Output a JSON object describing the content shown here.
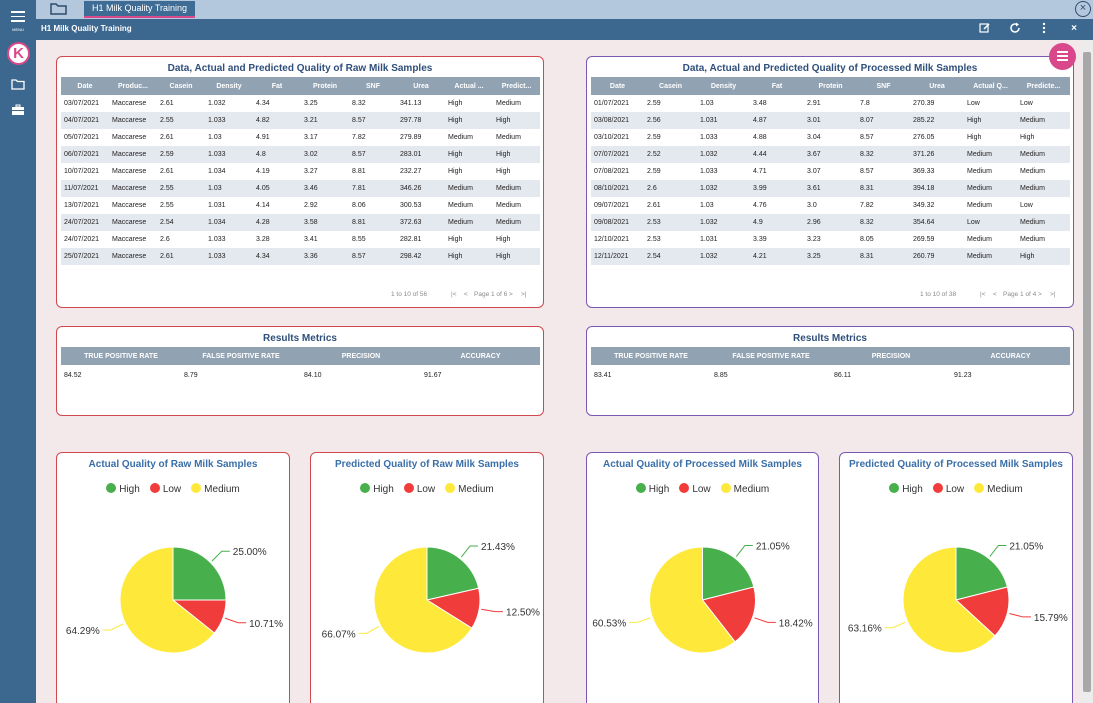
{
  "app": {
    "menu_label": "MENU",
    "tab_title": "H1 Milk Quality Training",
    "window_title": "H1 Milk Quality Training",
    "icons": [
      "edit-icon",
      "refresh-icon",
      "more-icon",
      "close-icon"
    ],
    "colors": {
      "accent": "#d9488a",
      "primary": "#3c6890",
      "high": "#47b04c",
      "low": "#f03c3a",
      "medium": "#fee93b"
    }
  },
  "raw_table": {
    "title": "Data, Actual and Predicted Quality of Raw Milk Samples",
    "columns": [
      "Date",
      "Produc...",
      "Casein",
      "Density",
      "Fat",
      "Protein",
      "SNF",
      "Urea",
      "Actual ...",
      "Predict..."
    ],
    "rows": [
      [
        "03/07/2021",
        "Maccarese",
        "2.61",
        "1.032",
        "4.34",
        "3.25",
        "8.32",
        "341.13",
        "High",
        "Medium"
      ],
      [
        "04/07/2021",
        "Maccarese",
        "2.55",
        "1.033",
        "4.82",
        "3.21",
        "8.57",
        "297.78",
        "High",
        "High"
      ],
      [
        "05/07/2021",
        "Maccarese",
        "2.61",
        "1.03",
        "4.91",
        "3.17",
        "7.82",
        "279.89",
        "Medium",
        "Medium"
      ],
      [
        "06/07/2021",
        "Maccarese",
        "2.59",
        "1.033",
        "4.8",
        "3.02",
        "8.57",
        "283.01",
        "High",
        "High"
      ],
      [
        "10/07/2021",
        "Maccarese",
        "2.61",
        "1.034",
        "4.19",
        "3.27",
        "8.81",
        "232.27",
        "High",
        "High"
      ],
      [
        "11/07/2021",
        "Maccarese",
        "2.55",
        "1.03",
        "4.05",
        "3.46",
        "7.81",
        "346.26",
        "Medium",
        "Medium"
      ],
      [
        "13/07/2021",
        "Maccarese",
        "2.55",
        "1.031",
        "4.14",
        "2.92",
        "8.06",
        "300.53",
        "Medium",
        "Medium"
      ],
      [
        "24/07/2021",
        "Maccarese",
        "2.54",
        "1.034",
        "4.28",
        "3.58",
        "8.81",
        "372.63",
        "Medium",
        "Medium"
      ],
      [
        "24/07/2021",
        "Maccarese",
        "2.6",
        "1.033",
        "3.28",
        "3.41",
        "8.55",
        "282.81",
        "High",
        "High"
      ],
      [
        "25/07/2021",
        "Maccarese",
        "2.61",
        "1.033",
        "4.34",
        "3.36",
        "8.57",
        "298.42",
        "High",
        "High"
      ]
    ],
    "pager_count": "1 to 10 of 56",
    "pager_page": "Page 1 of 6"
  },
  "proc_table": {
    "title": "Data, Actual and Predicted Quality of Processed Milk Samples",
    "columns": [
      "Date",
      "Casein",
      "Density",
      "Fat",
      "Protein",
      "SNF",
      "Urea",
      "Actual Q...",
      "Predicte..."
    ],
    "rows": [
      [
        "01/07/2021",
        "2.59",
        "1.03",
        "3.48",
        "2.91",
        "7.8",
        "270.39",
        "Low",
        "Low"
      ],
      [
        "03/08/2021",
        "2.56",
        "1.031",
        "4.87",
        "3.01",
        "8.07",
        "285.22",
        "High",
        "Medium"
      ],
      [
        "03/10/2021",
        "2.59",
        "1.033",
        "4.88",
        "3.04",
        "8.57",
        "276.05",
        "High",
        "High"
      ],
      [
        "07/07/2021",
        "2.52",
        "1.032",
        "4.44",
        "3.67",
        "8.32",
        "371.26",
        "Medium",
        "Medium"
      ],
      [
        "07/08/2021",
        "2.59",
        "1.033",
        "4.71",
        "3.07",
        "8.57",
        "369.33",
        "Medium",
        "Medium"
      ],
      [
        "08/10/2021",
        "2.6",
        "1.032",
        "3.99",
        "3.61",
        "8.31",
        "394.18",
        "Medium",
        "Medium"
      ],
      [
        "09/07/2021",
        "2.61",
        "1.03",
        "4.76",
        "3.0",
        "7.82",
        "349.32",
        "Medium",
        "Low"
      ],
      [
        "09/08/2021",
        "2.53",
        "1.032",
        "4.9",
        "2.96",
        "8.32",
        "354.64",
        "Low",
        "Medium"
      ],
      [
        "12/10/2021",
        "2.53",
        "1.031",
        "3.39",
        "3.23",
        "8.05",
        "269.59",
        "Medium",
        "Medium"
      ],
      [
        "12/11/2021",
        "2.54",
        "1.032",
        "4.21",
        "3.25",
        "8.31",
        "260.79",
        "Medium",
        "High"
      ]
    ],
    "pager_count": "1 to 10 of 38",
    "pager_page": "Page 1 of 4"
  },
  "raw_metrics": {
    "title": "Results Metrics",
    "columns": [
      "TRUE POSITIVE RATE",
      "FALSE POSITIVE RATE",
      "PRECISION",
      "ACCURACY"
    ],
    "values": [
      "84.52",
      "8.79",
      "84.10",
      "91.67"
    ]
  },
  "proc_metrics": {
    "title": "Results Metrics",
    "columns": [
      "TRUE POSITIVE RATE",
      "FALSE POSITIVE RATE",
      "PRECISION",
      "ACCURACY"
    ],
    "values": [
      "83.41",
      "8.85",
      "86.11",
      "91.23"
    ]
  },
  "chart_data": [
    {
      "type": "pie",
      "title": "Actual Quality of Raw Milk Samples",
      "categories": [
        "High",
        "Low",
        "Medium"
      ],
      "values": [
        25.0,
        10.71,
        64.29
      ],
      "labels": [
        "25.00%",
        "10.71%",
        "64.29%"
      ],
      "legend": "top"
    },
    {
      "type": "pie",
      "title": "Predicted Quality of Raw Milk Samples",
      "categories": [
        "High",
        "Low",
        "Medium"
      ],
      "values": [
        21.43,
        12.5,
        66.07
      ],
      "labels": [
        "21.43%",
        "12.50%",
        "66.07%"
      ],
      "legend": "top"
    },
    {
      "type": "pie",
      "title": "Actual Quality of Processed Milk Samples",
      "categories": [
        "High",
        "Low",
        "Medium"
      ],
      "values": [
        21.05,
        18.42,
        60.53
      ],
      "labels": [
        "21.05%",
        "18.42%",
        "60.53%"
      ],
      "legend": "top"
    },
    {
      "type": "pie",
      "title": "Predicted Quality of Processed Milk Samples",
      "categories": [
        "High",
        "Low",
        "Medium"
      ],
      "values": [
        21.05,
        15.79,
        63.16
      ],
      "labels": [
        "21.05%",
        "15.79%",
        "63.16%"
      ],
      "legend": "top"
    }
  ]
}
